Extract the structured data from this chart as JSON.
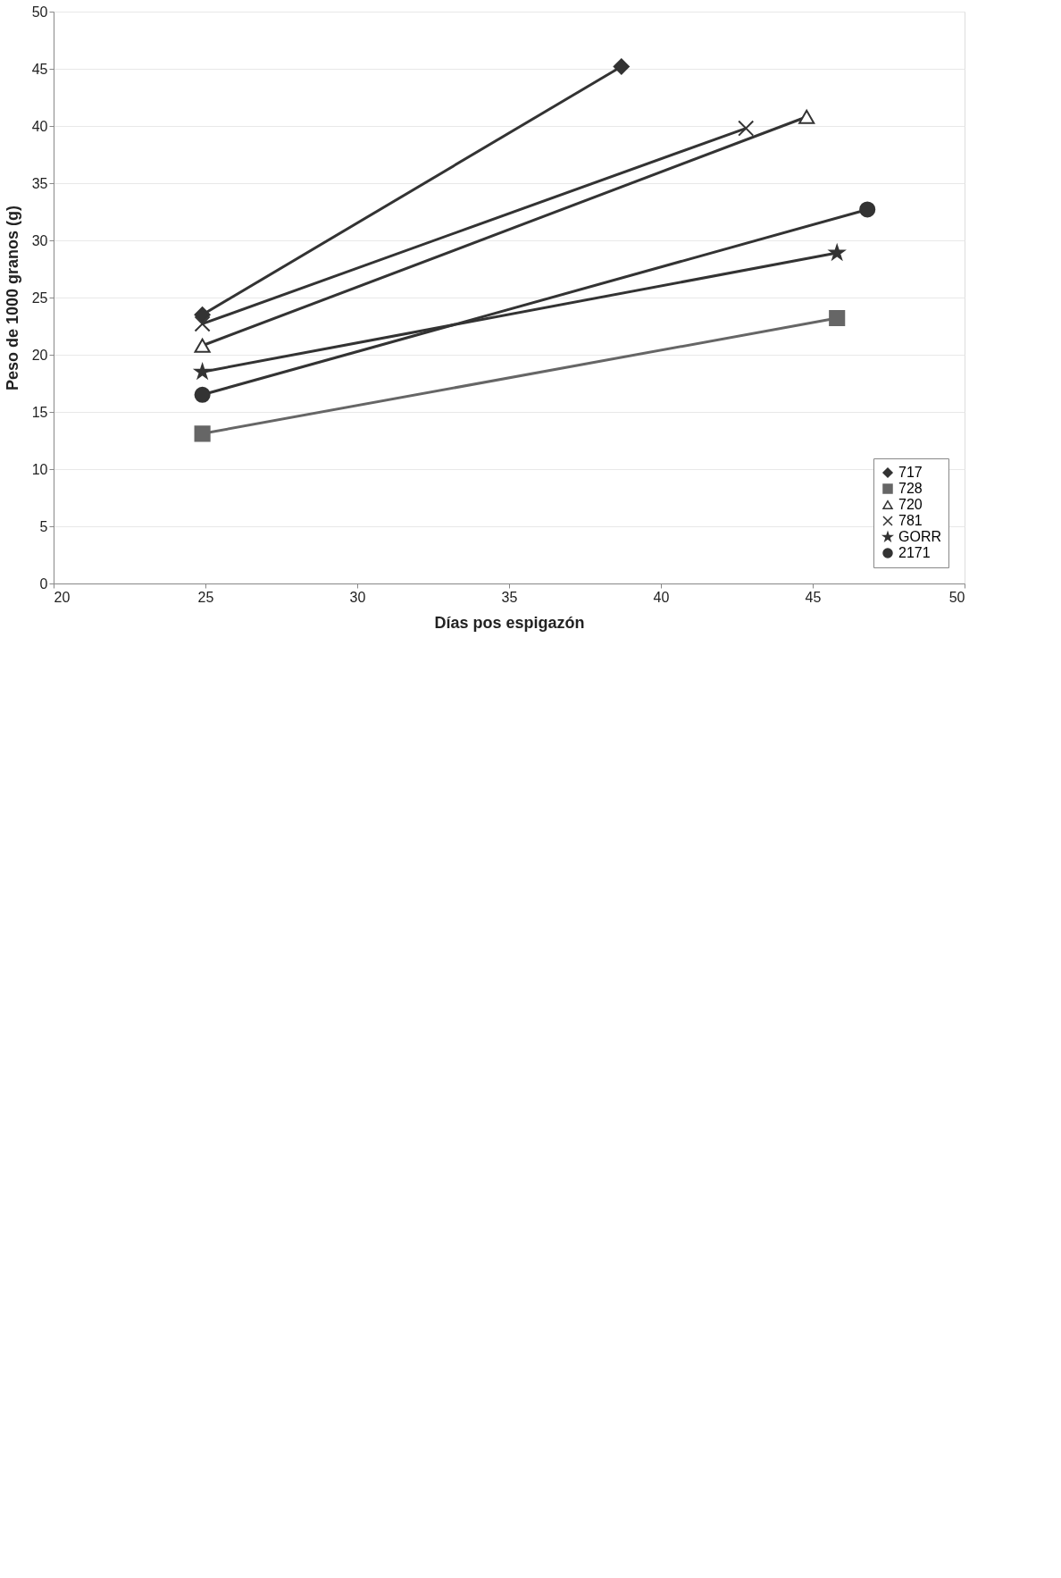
{
  "chart_data": {
    "type": "line",
    "xlabel": "Días pos espigazón",
    "ylabel": "Peso de 1000 granos (g)",
    "xlim": [
      20,
      50
    ],
    "xticks": [
      20,
      25,
      30,
      35,
      40,
      45,
      50
    ],
    "ylim": [
      0,
      50
    ],
    "yticks": [
      0,
      5,
      10,
      15,
      20,
      25,
      30,
      35,
      40,
      45,
      50
    ],
    "grid": "y",
    "legend": "bottom right",
    "line_style": "solid",
    "series": [
      {
        "name": "717",
        "color": "#333333",
        "marker": "diamond",
        "x": [
          24.9,
          38.7
        ],
        "values": [
          23.5,
          45.2
        ]
      },
      {
        "name": "728",
        "color": "#666666",
        "marker": "square",
        "x": [
          24.9,
          45.8
        ],
        "values": [
          13.1,
          23.2
        ]
      },
      {
        "name": "720",
        "color": "#333333",
        "marker": "triangle",
        "x": [
          24.9,
          44.8
        ],
        "values": [
          20.8,
          40.8
        ]
      },
      {
        "name": "781",
        "color": "#333333",
        "marker": "cross",
        "x": [
          24.9,
          42.8
        ],
        "values": [
          22.7,
          39.8
        ]
      },
      {
        "name": "GORR",
        "color": "#333333",
        "marker": "star",
        "x": [
          24.9,
          45.8
        ],
        "values": [
          18.5,
          28.9
        ]
      },
      {
        "name": "2171",
        "color": "#333333",
        "marker": "circle",
        "x": [
          24.9,
          46.8
        ],
        "values": [
          16.5,
          32.7
        ]
      }
    ]
  }
}
